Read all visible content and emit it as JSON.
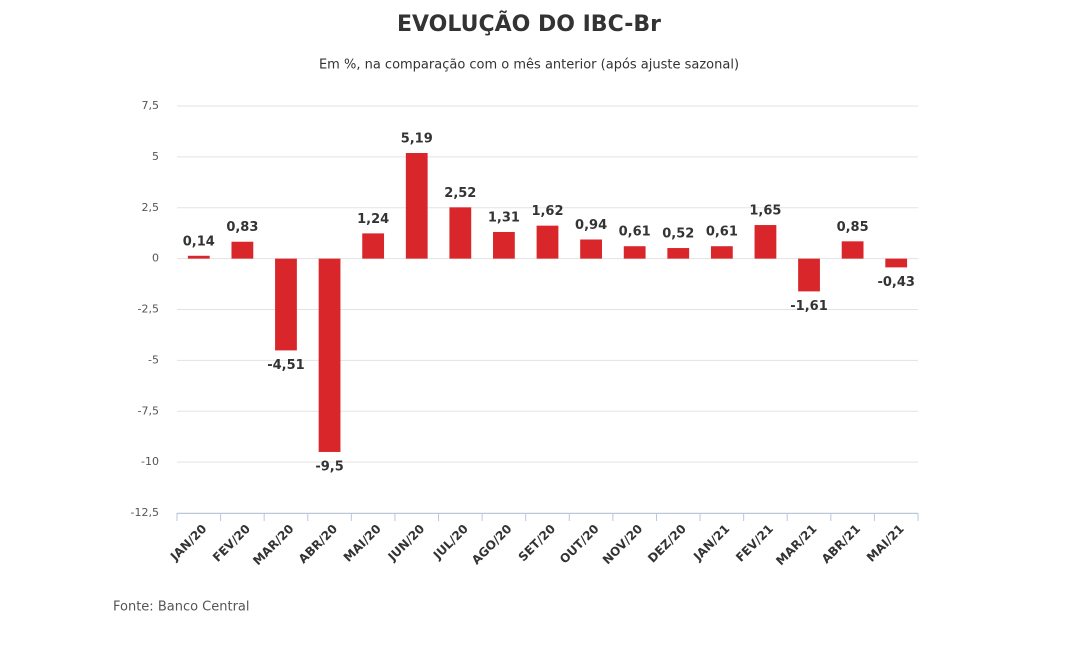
{
  "chart_data": {
    "type": "bar",
    "title": "EVOLUÇÃO DO IBC-Br",
    "subtitle": "Em %, na comparação com o mês anterior (após ajuste sazonal)",
    "source": "Fonte: Banco Central",
    "categories": [
      "JAN/20",
      "FEV/20",
      "MAR/20",
      "ABR/20",
      "MAI/20",
      "JUN/20",
      "JUL/20",
      "AGO/20",
      "SET/20",
      "OUT/20",
      "NOV/20",
      "DEZ/20",
      "JAN/21",
      "FEV/21",
      "MAR/21",
      "ABR/21",
      "MAI/21"
    ],
    "values": [
      0.14,
      0.83,
      -4.51,
      -9.5,
      1.24,
      5.19,
      2.52,
      1.31,
      1.62,
      0.94,
      0.61,
      0.52,
      0.61,
      1.65,
      -1.61,
      0.85,
      -0.43
    ],
    "value_labels": [
      "0,14",
      "0,83",
      "-4,51",
      "-9,5",
      "1,24",
      "5,19",
      "2,52",
      "1,31",
      "1,62",
      "0,94",
      "0,61",
      "0,52",
      "0,61",
      "1,65",
      "-1,61",
      "0,85",
      "-0,43"
    ],
    "color": "#d9262a",
    "ylim": [
      -12.5,
      7.5
    ],
    "yticks": [
      {
        "value": 7.5,
        "label": "7,5"
      },
      5,
      {
        "value": 2.5,
        "label": "2,5"
      },
      0,
      {
        "value": -2.5,
        "label": "-2,5"
      },
      -5,
      {
        "value": -7.5,
        "label": "-7,5"
      },
      -10,
      {
        "value": -12.5,
        "label": "-12,5"
      }
    ],
    "grid": true
  }
}
